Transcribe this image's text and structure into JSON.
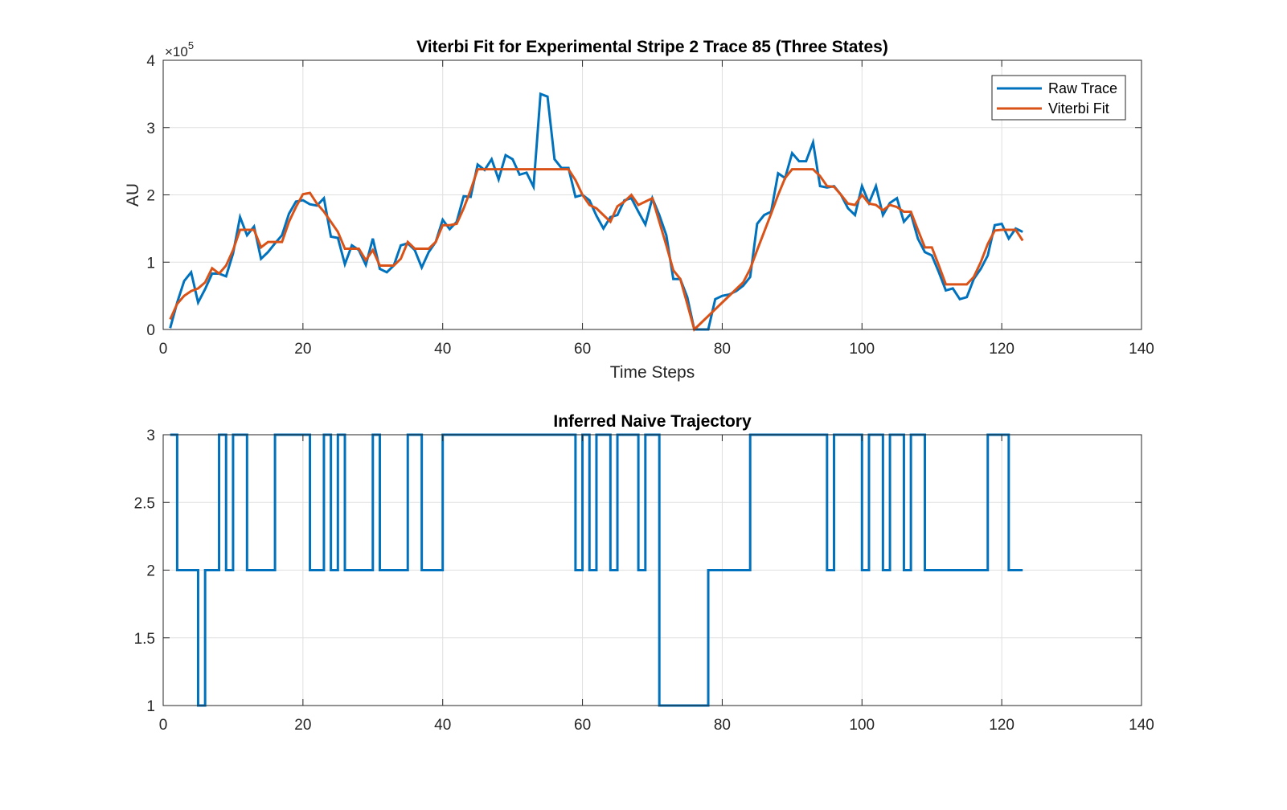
{
  "chart_data": [
    {
      "type": "line",
      "title": "Viterbi Fit for Experimental Stripe 2 Trace 85 (Three States)",
      "xlabel": "Time Steps",
      "ylabel": "AU",
      "xlim": [
        0,
        140
      ],
      "ylim": [
        0,
        400000
      ],
      "xticks": [
        0,
        20,
        40,
        60,
        80,
        100,
        120,
        140
      ],
      "yticks": [
        0,
        1,
        2,
        3,
        4
      ],
      "y_exponent_label": "×10",
      "y_exponent_power": "5",
      "grid": true,
      "legend_position": "top-right",
      "series": [
        {
          "name": "Raw Trace",
          "color": "#0072BD",
          "x": [
            1,
            2,
            3,
            4,
            5,
            6,
            7,
            8,
            9,
            10,
            11,
            12,
            13,
            14,
            15,
            16,
            17,
            18,
            19,
            20,
            21,
            22,
            23,
            24,
            25,
            26,
            27,
            28,
            29,
            30,
            31,
            32,
            33,
            34,
            35,
            36,
            37,
            38,
            39,
            40,
            41,
            42,
            43,
            44,
            45,
            46,
            47,
            48,
            49,
            50,
            51,
            52,
            53,
            54,
            55,
            56,
            57,
            58,
            59,
            60,
            61,
            62,
            63,
            64,
            65,
            66,
            67,
            68,
            69,
            70,
            71,
            72,
            73,
            74,
            75,
            76,
            77,
            78,
            79,
            80,
            81,
            82,
            83,
            84,
            85,
            86,
            87,
            88,
            89,
            90,
            91,
            92,
            93,
            94,
            95,
            96,
            97,
            98,
            99,
            100,
            101,
            102,
            103,
            104,
            105,
            106,
            107,
            108,
            109,
            110,
            111,
            112,
            113,
            114,
            115,
            116,
            117,
            118,
            119,
            120,
            121,
            122,
            123
          ],
          "y": [
            2000,
            40000,
            72000,
            85000,
            40000,
            60000,
            83000,
            83000,
            79000,
            113000,
            167000,
            140000,
            153000,
            105000,
            115000,
            128000,
            140000,
            172000,
            190000,
            192000,
            186000,
            184000,
            195000,
            138000,
            136000,
            97000,
            125000,
            118000,
            96000,
            135000,
            90000,
            85000,
            95000,
            125000,
            128000,
            118000,
            92000,
            115000,
            130000,
            163000,
            149000,
            160000,
            198000,
            197000,
            245000,
            237000,
            253000,
            223000,
            259000,
            253000,
            230000,
            233000,
            212000,
            350000,
            346000,
            253000,
            240000,
            240000,
            197000,
            200000,
            192000,
            169000,
            150000,
            167000,
            170000,
            192000,
            195000,
            175000,
            156000,
            195000,
            170000,
            140000,
            75000,
            75000,
            48000,
            0,
            0,
            0,
            45000,
            50000,
            52000,
            57000,
            65000,
            78000,
            157000,
            170000,
            175000,
            232000,
            225000,
            262000,
            250000,
            250000,
            278000,
            213000,
            211000,
            213000,
            200000,
            180000,
            170000,
            213000,
            188000,
            213000,
            170000,
            188000,
            195000,
            160000,
            172000,
            135000,
            115000,
            110000,
            85000,
            58000,
            61000,
            45000,
            48000,
            75000,
            90000,
            110000,
            155000,
            157000,
            135000,
            150000,
            145000
          ]
        },
        {
          "name": "Viterbi Fit",
          "color": "#D95319",
          "x": [
            1,
            2,
            3,
            4,
            5,
            6,
            7,
            8,
            9,
            10,
            11,
            12,
            13,
            14,
            15,
            16,
            17,
            18,
            19,
            20,
            21,
            22,
            23,
            24,
            25,
            26,
            27,
            28,
            29,
            30,
            31,
            32,
            33,
            34,
            35,
            36,
            37,
            38,
            39,
            40,
            41,
            42,
            43,
            44,
            45,
            46,
            47,
            48,
            49,
            50,
            51,
            52,
            53,
            54,
            55,
            56,
            57,
            58,
            59,
            60,
            61,
            62,
            63,
            64,
            65,
            66,
            67,
            68,
            69,
            70,
            71,
            72,
            73,
            74,
            75,
            76,
            77,
            78,
            79,
            80,
            81,
            82,
            83,
            84,
            85,
            86,
            87,
            88,
            89,
            90,
            91,
            92,
            93,
            94,
            95,
            96,
            97,
            98,
            99,
            100,
            101,
            102,
            103,
            104,
            105,
            106,
            107,
            108,
            109,
            110,
            111,
            112,
            113,
            114,
            115,
            116,
            117,
            118,
            119,
            120,
            121,
            122,
            123
          ],
          "y": [
            15000,
            38000,
            50000,
            57000,
            61000,
            70000,
            91000,
            83000,
            95000,
            118000,
            148000,
            148000,
            148000,
            122000,
            130000,
            130000,
            130000,
            160000,
            182000,
            201000,
            203000,
            187000,
            175000,
            160000,
            145000,
            120000,
            120000,
            120000,
            103000,
            118000,
            95000,
            95000,
            95000,
            105000,
            130000,
            120000,
            120000,
            120000,
            130000,
            155000,
            155000,
            157000,
            180000,
            207000,
            238000,
            238000,
            238000,
            238000,
            238000,
            238000,
            238000,
            238000,
            238000,
            238000,
            238000,
            238000,
            238000,
            238000,
            222000,
            200000,
            185000,
            180000,
            170000,
            160000,
            183000,
            190000,
            200000,
            185000,
            190000,
            195000,
            160000,
            125000,
            88000,
            75000,
            38000,
            0,
            10000,
            20000,
            30000,
            40000,
            50000,
            60000,
            70000,
            90000,
            118000,
            145000,
            172000,
            200000,
            225000,
            238000,
            238000,
            238000,
            238000,
            228000,
            213000,
            212000,
            200000,
            187000,
            185000,
            200000,
            187000,
            185000,
            177000,
            185000,
            182000,
            175000,
            175000,
            148000,
            122000,
            122000,
            95000,
            67000,
            67000,
            67000,
            67000,
            78000,
            100000,
            127000,
            147000,
            148000,
            148000,
            148000,
            132000
          ]
        }
      ]
    },
    {
      "type": "line",
      "title": "Inferred Naive Trajectory",
      "xlabel": "",
      "ylabel": "",
      "xlim": [
        0,
        140
      ],
      "ylim": [
        1,
        3
      ],
      "xticks": [
        0,
        20,
        40,
        60,
        80,
        100,
        120,
        140
      ],
      "yticks": [
        1,
        1.5,
        2,
        2.5,
        3
      ],
      "step": true,
      "grid": true,
      "series": [
        {
          "color": "#0072BD",
          "x": [
            1,
            2,
            3,
            4,
            5,
            6,
            7,
            8,
            9,
            10,
            11,
            12,
            13,
            14,
            15,
            16,
            17,
            18,
            19,
            20,
            21,
            22,
            23,
            24,
            25,
            26,
            27,
            28,
            29,
            30,
            31,
            32,
            33,
            34,
            35,
            36,
            37,
            38,
            39,
            40,
            41,
            42,
            43,
            44,
            45,
            46,
            47,
            48,
            49,
            50,
            51,
            52,
            53,
            54,
            55,
            56,
            57,
            58,
            59,
            60,
            61,
            62,
            63,
            64,
            65,
            66,
            67,
            68,
            69,
            70,
            71,
            72,
            73,
            74,
            75,
            76,
            77,
            78,
            79,
            80,
            81,
            82,
            83,
            84,
            85,
            86,
            87,
            88,
            89,
            90,
            91,
            92,
            93,
            94,
            95,
            96,
            97,
            98,
            99,
            100,
            101,
            102,
            103,
            104,
            105,
            106,
            107,
            108,
            109,
            110,
            111,
            112,
            113,
            114,
            115,
            116,
            117,
            118,
            119,
            120,
            121,
            122,
            123
          ],
          "y": [
            3,
            2,
            2,
            2,
            1,
            2,
            2,
            3,
            2,
            3,
            3,
            2,
            2,
            2,
            2,
            3,
            3,
            3,
            3,
            3,
            2,
            2,
            3,
            2,
            3,
            2,
            2,
            2,
            2,
            3,
            2,
            2,
            2,
            2,
            3,
            3,
            2,
            2,
            2,
            3,
            3,
            3,
            3,
            3,
            3,
            3,
            3,
            3,
            3,
            3,
            3,
            3,
            3,
            3,
            3,
            3,
            3,
            3,
            2,
            3,
            2,
            3,
            3,
            2,
            3,
            3,
            3,
            2,
            3,
            3,
            1,
            1,
            1,
            1,
            1,
            1,
            1,
            2,
            2,
            2,
            2,
            2,
            2,
            3,
            3,
            3,
            3,
            3,
            3,
            3,
            3,
            3,
            3,
            3,
            2,
            3,
            3,
            3,
            3,
            2,
            3,
            3,
            2,
            3,
            3,
            2,
            3,
            3,
            2,
            2,
            2,
            2,
            2,
            2,
            2,
            2,
            2,
            3,
            3,
            3,
            2,
            2,
            2
          ]
        }
      ]
    }
  ]
}
